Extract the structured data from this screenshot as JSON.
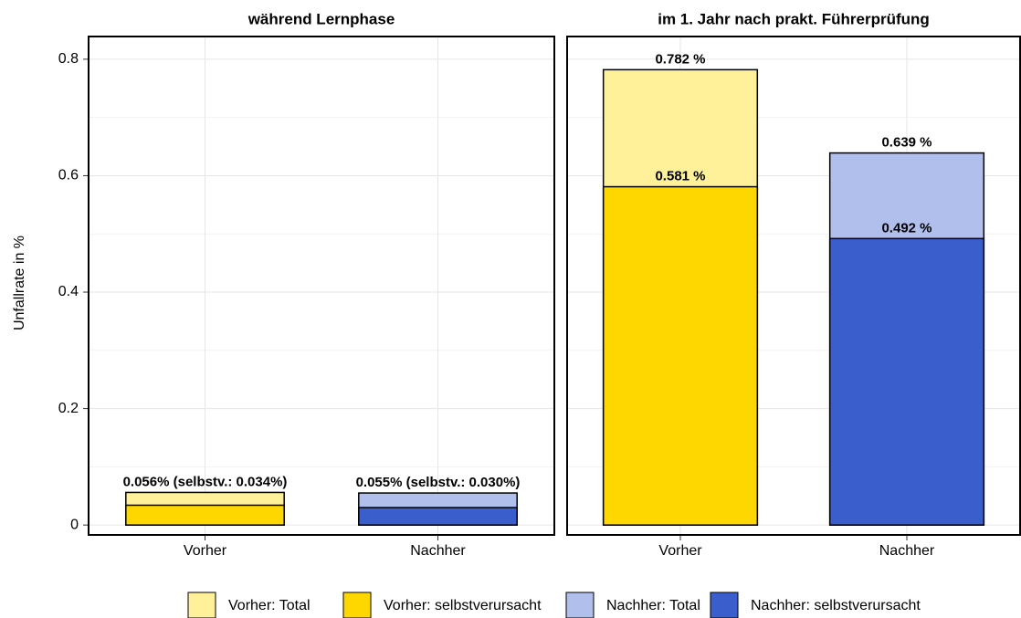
{
  "chart_data": [
    {
      "type": "bar",
      "title": "während Lernphase",
      "categories": [
        "Vorher",
        "Nachher"
      ],
      "series": [
        {
          "values": [
            0.056,
            0.055
          ]
        },
        {
          "values": [
            0.034,
            0.03
          ]
        }
      ],
      "value_labels": [
        "0.056% (selbstv.: 0.034%)",
        "0.055% (selbstv.: 0.030%)"
      ]
    },
    {
      "type": "bar",
      "title": "im 1. Jahr nach prakt. Führerprüfung",
      "categories": [
        "Vorher",
        "Nachher"
      ],
      "series": [
        {
          "values": [
            0.782,
            0.639
          ],
          "value_labels": [
            "0.782 %",
            "0.639 %"
          ]
        },
        {
          "values": [
            0.581,
            0.492
          ],
          "value_labels": [
            "0.581 %",
            "0.492 %"
          ]
        }
      ]
    }
  ],
  "ylabel": "Unfallrate in %",
  "ylim": [
    -0.017,
    0.839
  ],
  "yticks": [
    0,
    0.2,
    0.4,
    0.6,
    0.8
  ],
  "minor_grid": [
    0.1,
    0.3,
    0.5,
    0.7
  ],
  "legend": [
    {
      "name": "Vorher: Total",
      "color": "#fff09a"
    },
    {
      "name": "Vorher: selbstverursacht",
      "color": "#ffd700"
    },
    {
      "name": "Nachher: Total",
      "color": "#b0bfeb"
    },
    {
      "name": "Nachher: selbstverursacht",
      "color": "#3a5fcd"
    }
  ]
}
